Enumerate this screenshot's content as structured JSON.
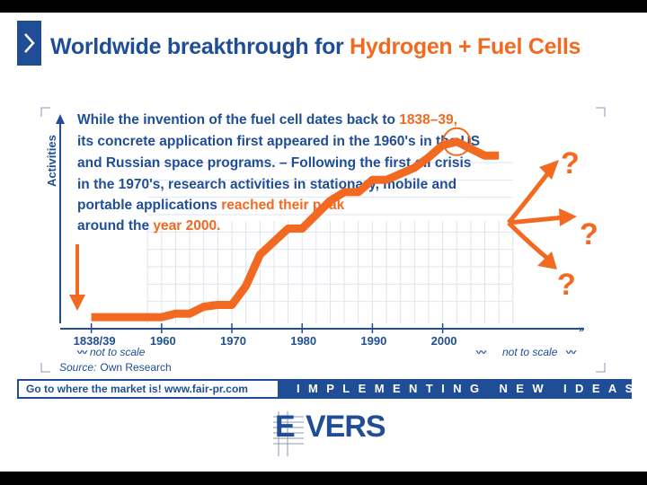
{
  "header": {
    "title_main": "Worldwide breakthrough for ",
    "title_highlight": "Hydrogen + Fuel Cells"
  },
  "colors": {
    "brand_blue": "#1f4e96",
    "accent_orange": "#f26a21",
    "grid": "#dfe4ef"
  },
  "description": {
    "line1_a": "While the invention of the fuel cell dates back to ",
    "line1_b": "1838–39,",
    "line2": "its concrete application first appeared in the 1960's in the US",
    "line3": "and Russian space programs. – Following the first oil crisis",
    "line4": "in the 1970's, research activities in stationary, mobile and",
    "line5_a": "portable applications ",
    "line5_b": "reached their peak",
    "line6_a": "around the ",
    "line6_b": "year 2000."
  },
  "chart_data": {
    "type": "line",
    "title": "",
    "xlabel": "",
    "ylabel": "Activities",
    "x_ticks": [
      "1838/39",
      "1960",
      "1970",
      "1980",
      "1990",
      "2000"
    ],
    "x_tick_values": [
      1950,
      1960,
      1970,
      1980,
      1990,
      2000
    ],
    "series": [
      {
        "x": [
          1950,
          1960,
          1962,
          1964,
          1966,
          1968,
          1970,
          1972,
          1974,
          1978,
          1980,
          1984,
          1986,
          1988,
          1990,
          1992,
          1996,
          1998,
          2000,
          2002,
          2006,
          2008
        ],
        "y": [
          0.1,
          0.1,
          0.3,
          0.3,
          0.7,
          0.8,
          0.8,
          1.9,
          3.7,
          5.2,
          5.2,
          6.8,
          7.3,
          7.3,
          8.0,
          8.0,
          8.7,
          9.3,
          10.0,
          10.2,
          9.4,
          9.4
        ]
      }
    ],
    "xlim": [
      1948,
      2020
    ],
    "ylim": [
      0,
      12
    ],
    "grid": true,
    "peak_marker_year": 2002,
    "question_marks": [
      "?",
      "?",
      "?"
    ],
    "not_to_scale_left": "not to scale",
    "not_to_scale_right": "not to scale",
    "source_label": "Source:",
    "source_value": "Own Research"
  },
  "footer": {
    "left_text": "Go to where the market is!   www.fair-pr.com",
    "right_text": "IMPLEMENTING NEW IDEAS"
  },
  "logo": {
    "text": "VERS",
    "first_letter": "E"
  }
}
